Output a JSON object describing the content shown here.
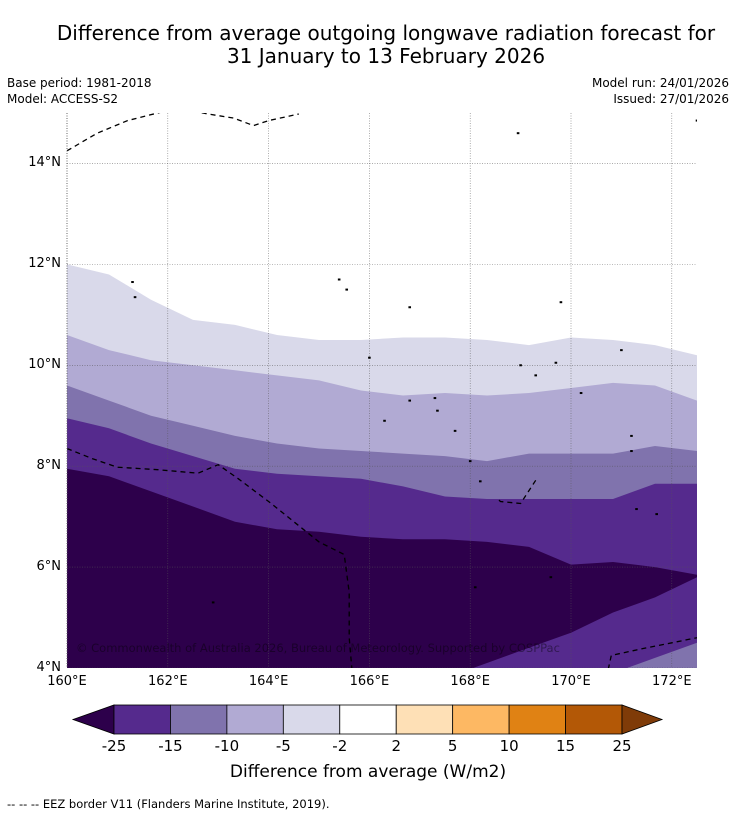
{
  "title": {
    "line1": "Difference from average outgoing longwave radiation forecast for",
    "line2": "31 January to 13 February 2026"
  },
  "meta": {
    "base_period": "Base period: 1981-2018",
    "model": "Model: ACCESS-S2",
    "model_run": "Model run: 24/01/2026",
    "issued": "Issued: 27/01/2026"
  },
  "map": {
    "lat_labels": [
      "14°N",
      "12°N",
      "10°N",
      "8°N",
      "6°N",
      "4°N"
    ],
    "lat_values": [
      14,
      12,
      10,
      8,
      6,
      4
    ],
    "lon_labels": [
      "160°E",
      "162°E",
      "164°E",
      "166°E",
      "168°E",
      "170°E",
      "172°E"
    ],
    "lon_values": [
      160,
      162,
      164,
      166,
      168,
      170,
      172
    ],
    "lon_range": [
      160,
      172.5
    ],
    "lat_range": [
      4,
      15
    ],
    "copyright": "© Commonwealth of Australia 2026, Bureau of Meteorology. Supported by COSPPac",
    "bands": [
      {
        "level": "-5 to -2",
        "color": "#d9d9ea",
        "upper_lat": [
          12.0,
          11.8,
          11.3,
          10.9,
          10.8,
          10.6,
          10.5,
          10.5,
          10.55,
          10.55,
          10.5,
          10.4,
          10.55,
          10.5,
          10.4,
          10.2
        ]
      },
      {
        "level": "-10 to -5",
        "color": "#b1aad3",
        "upper_lat": [
          10.6,
          10.3,
          10.1,
          10.0,
          9.9,
          9.8,
          9.7,
          9.5,
          9.4,
          9.45,
          9.4,
          9.45,
          9.55,
          9.65,
          9.6,
          9.3
        ]
      },
      {
        "level": "-15 to -10",
        "color": "#8073ad",
        "upper_lat": [
          9.6,
          9.3,
          9.0,
          8.8,
          8.6,
          8.45,
          8.35,
          8.3,
          8.25,
          8.2,
          8.1,
          8.25,
          8.25,
          8.25,
          8.4,
          8.3
        ]
      },
      {
        "level": "-25 to -15",
        "color": "#552a8d",
        "upper_lat": [
          8.95,
          8.75,
          8.45,
          8.2,
          7.95,
          7.85,
          7.8,
          7.75,
          7.6,
          7.4,
          7.35,
          7.35,
          7.35,
          7.35,
          7.65,
          7.65
        ]
      },
      {
        "level": "< -25",
        "color": "#2d004b",
        "upper_lat": [
          7.95,
          7.8,
          7.5,
          7.2,
          6.9,
          6.75,
          6.7,
          6.6,
          6.55,
          6.55,
          6.5,
          6.4,
          6.05,
          6.1,
          6.0,
          5.85
        ]
      },
      {
        "level": "-25 to -15 (south)",
        "color": "#552a8d",
        "upper_lat": [
          3.5,
          3.5,
          3.5,
          3.5,
          3.5,
          3.5,
          3.5,
          3.5,
          3.6,
          3.8,
          4.1,
          4.4,
          4.7,
          5.1,
          5.4,
          5.8
        ]
      },
      {
        "level": "-15 to -10 (south)",
        "color": "#8073ad",
        "upper_lat": [
          3.5,
          3.5,
          3.5,
          3.5,
          3.5,
          3.5,
          3.5,
          3.5,
          3.5,
          3.5,
          3.5,
          3.5,
          3.6,
          3.9,
          4.2,
          4.5
        ]
      }
    ]
  },
  "colorbar": {
    "colors": [
      "#2d004b",
      "#552a8d",
      "#8073ad",
      "#b1aad3",
      "#d9d9ea",
      "#ffffff",
      "#fee0b6",
      "#fdb863",
      "#e08214",
      "#b35806",
      "#7f3b08"
    ],
    "ticks": [
      "-25",
      "-15",
      "-10",
      "-5",
      "-2",
      "2",
      "5",
      "10",
      "15",
      "25"
    ],
    "label": "Difference from average (W/m2)"
  },
  "legend": {
    "text": "--  --  -- EEZ border V11 (Flanders Marine Institute, 2019)."
  }
}
